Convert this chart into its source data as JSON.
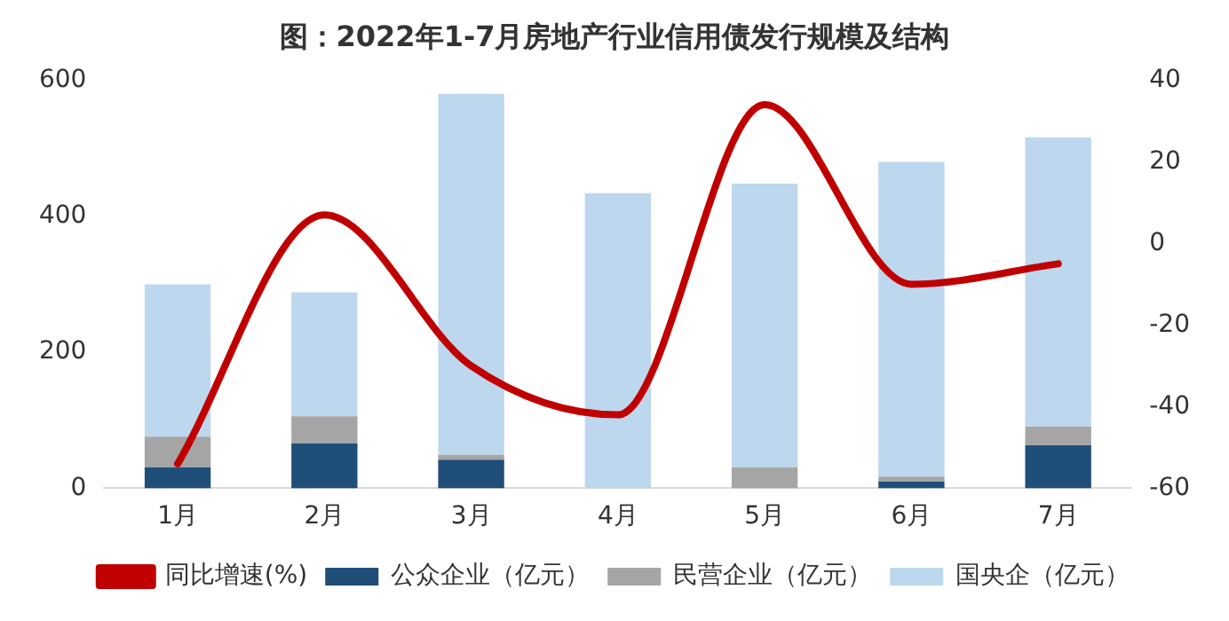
{
  "chart_data": {
    "type": "bar",
    "title": "图：2022年1-7月房地产行业信用债发行规模及结构",
    "categories": [
      "1月",
      "2月",
      "3月",
      "4月",
      "5月",
      "6月",
      "7月"
    ],
    "stacked": true,
    "series": [
      {
        "name": "公众企业（亿元）",
        "color": "#1f4e79",
        "values": [
          31,
          66,
          42,
          0,
          0,
          10,
          63
        ]
      },
      {
        "name": "民营企业（亿元）",
        "color": "#a5a5a5",
        "values": [
          45,
          40,
          7,
          0,
          31,
          7,
          28
        ]
      },
      {
        "name": "国央企（亿元）",
        "color": "#bdd7ee",
        "values": [
          224,
          182,
          531,
          434,
          417,
          463,
          425
        ]
      },
      {
        "name": "同比增速(%)",
        "type": "line",
        "axis": "y2",
        "color": "#c00000",
        "values": [
          -54,
          7,
          -30,
          -42,
          34,
          -10,
          -5
        ]
      }
    ],
    "ylim": [
      0,
      600
    ],
    "yticks": [
      0,
      200,
      400,
      600
    ],
    "y2lim": [
      -60,
      40
    ],
    "y2ticks": [
      -60,
      -40,
      -20,
      0,
      20,
      40
    ],
    "grid": false,
    "legend": "bottom",
    "marker": "none"
  }
}
